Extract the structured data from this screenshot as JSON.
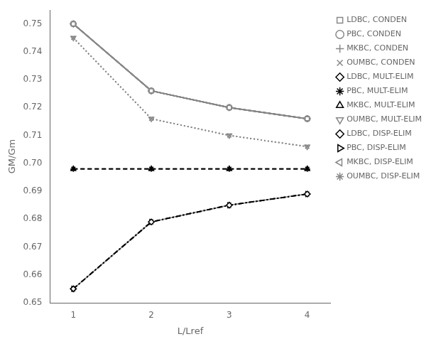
{
  "chart_data": {
    "type": "line",
    "x_label": "L/Lref",
    "y_label": "GM/Gm",
    "x": [
      1,
      2,
      3,
      4
    ],
    "series": [
      {
        "name": "LDBC, CONDEN",
        "color": "#888888",
        "marker": "square",
        "line_style": "solid",
        "values": [
          0.75,
          0.726,
          0.72,
          0.716
        ]
      },
      {
        "name": "PBC, CONDEN",
        "color": "#888888",
        "marker": "circle",
        "line_style": "solid",
        "values": [
          0.75,
          0.726,
          0.72,
          0.716
        ]
      },
      {
        "name": "MKBC, CONDEN",
        "color": "#888888",
        "marker": "plus",
        "line_style": "solid",
        "values": [
          0.75,
          0.726,
          0.72,
          0.716
        ]
      },
      {
        "name": "OUMBC, CONDEN",
        "color": "#888888",
        "marker": "x",
        "line_style": "dotted",
        "values": [
          0.745,
          0.716,
          0.71,
          0.706
        ]
      },
      {
        "name": "LDBC, MULT-ELIM",
        "color": "#000000",
        "marker": "diamond",
        "line_style": "solid",
        "values": [
          0.75,
          0.726,
          0.72,
          0.716
        ]
      },
      {
        "name": "PBC, MULT-ELIM",
        "color": "#000000",
        "marker": "star",
        "line_style": "dashed",
        "values": [
          0.698,
          0.698,
          0.698,
          0.698
        ]
      },
      {
        "name": "MKBC, MULT-ELIM",
        "color": "#000000",
        "marker": "triangle-up",
        "line_style": "dashed",
        "values": [
          0.698,
          0.698,
          0.698,
          0.698
        ]
      },
      {
        "name": "OUMBC, MULT-ELIM",
        "color": "#888888",
        "marker": "triangle-down",
        "line_style": "dotted",
        "values": [
          0.745,
          0.716,
          0.71,
          0.706
        ]
      },
      {
        "name": "LDBC, DISP-ELIM",
        "color": "#000000",
        "marker": "diamond",
        "line_style": "dashdot",
        "values": [
          0.655,
          0.679,
          0.685,
          0.689
        ]
      },
      {
        "name": "PBC, DISP-ELIM",
        "color": "#000000",
        "marker": "triangle-right",
        "line_style": "dashdot",
        "values": [
          0.655,
          0.679,
          0.685,
          0.689
        ]
      },
      {
        "name": "MKBC, DISP-ELIM",
        "color": "#888888",
        "marker": "triangle-left",
        "line_style": "solid",
        "values": [
          0.655,
          0.679,
          0.685,
          0.689
        ]
      },
      {
        "name": "OUMBC, DISP-ELIM",
        "color": "#888888",
        "marker": "star",
        "line_style": "dotted",
        "values": [
          0.655,
          0.679,
          0.685,
          0.689
        ]
      }
    ],
    "xlim": [
      0.7,
      4.3
    ],
    "ylim": [
      0.65,
      0.755
    ],
    "xticks": [
      1,
      2,
      3,
      4
    ],
    "yticks": [
      0.65,
      0.66,
      0.67,
      0.68,
      0.69,
      {
        "value": 0.7,
        "label": "0.70"
      },
      0.71,
      0.72,
      0.73,
      0.74,
      0.75
    ],
    "grid": false,
    "legend": "right"
  }
}
